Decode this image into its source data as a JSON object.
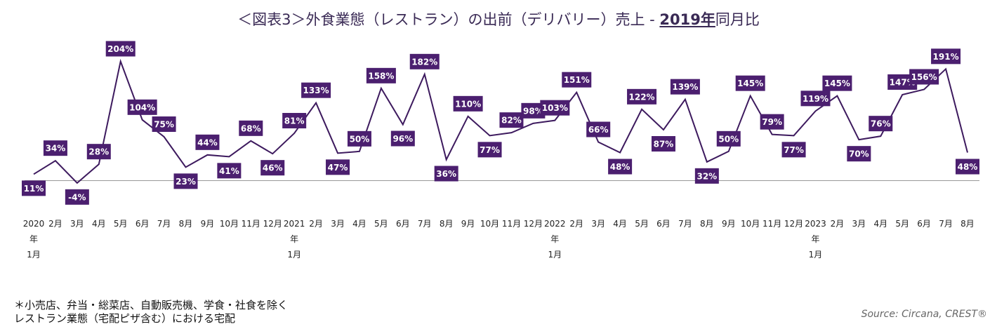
{
  "chart_data": {
    "type": "line",
    "title_parts": [
      "＜図表3＞外食業態（レストラン）の出前（デリバリー）売上 - ",
      "2019年",
      "同月比"
    ],
    "categories": [
      "2020\n年\n1月",
      "2月",
      "3月",
      "4月",
      "5月",
      "6月",
      "7月",
      "8月",
      "9月",
      "10月",
      "11月",
      "12月",
      "2021\n年\n1月",
      "2月",
      "3月",
      "4月",
      "5月",
      "6月",
      "7月",
      "8月",
      "9月",
      "10月",
      "11月",
      "12月",
      "2022\n年\n1月",
      "2月",
      "3月",
      "4月",
      "5月",
      "6月",
      "7月",
      "8月",
      "9月",
      "10月",
      "11月",
      "12月",
      "2023\n年\n1月",
      "2月",
      "3月",
      "4月",
      "5月",
      "6月",
      "7月",
      "8月"
    ],
    "values": [
      11,
      34,
      -4,
      28,
      204,
      104,
      75,
      23,
      44,
      41,
      68,
      46,
      81,
      133,
      47,
      50,
      158,
      96,
      182,
      36,
      110,
      77,
      82,
      98,
      103,
      151,
      66,
      48,
      122,
      87,
      139,
      32,
      50,
      145,
      79,
      77,
      119,
      145,
      70,
      76,
      147,
      156,
      191,
      48
    ],
    "value_labels": [
      "11%",
      "34%",
      "-4%",
      "28%",
      "204%",
      "104%",
      "75%",
      "23%",
      "44%",
      "41%",
      "68%",
      "46%",
      "81%",
      "133%",
      "47%",
      "50%",
      "158%",
      "96%",
      "182%",
      "36%",
      "110%",
      "77%",
      "82%",
      "98%",
      "103%",
      "151%",
      "66%",
      "48%",
      "122%",
      "87%",
      "139%",
      "32%",
      "50%",
      "145%",
      "79%",
      "77%",
      "119%",
      "145%",
      "70%",
      "76%",
      "147%",
      "156%",
      "191%",
      "48%"
    ],
    "color": "#3d1a5e",
    "label_color": "#4b1f6f",
    "ylim": [
      -15,
      225
    ],
    "note": "＊小売店、弁当・総菜店、自動販売機、学食・社食を除く\nレストラン業態（宅配ピザ含む）における宅配",
    "source": "Source: Circana, CREST®"
  }
}
